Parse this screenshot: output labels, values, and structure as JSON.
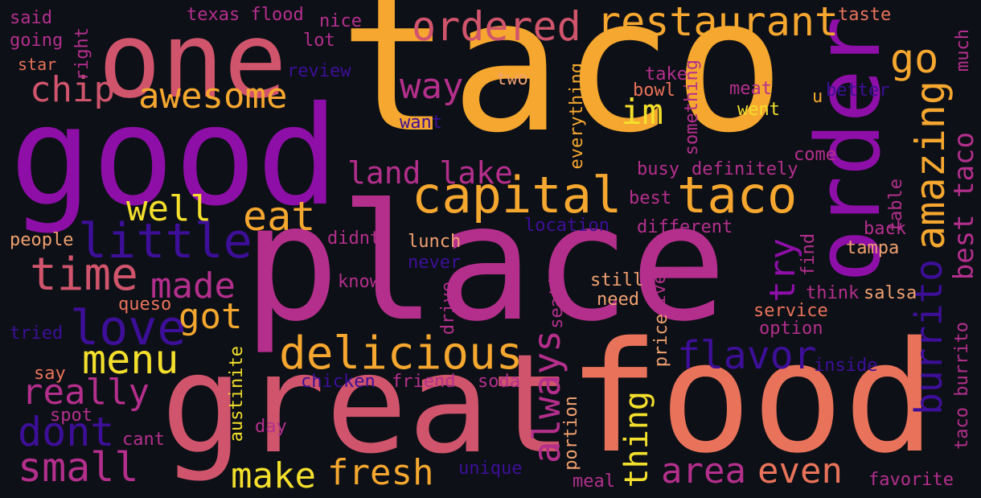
{
  "colors": {
    "background": "#0d1017",
    "purple": "#8e0fa8",
    "magenta": "#b42f8c",
    "pink": "#d0556c",
    "coral": "#e9735a",
    "orange": "#f5a72f",
    "yellow": "#f3df2c",
    "indigo": "#3d0f98",
    "peach": "#f0a070"
  },
  "words": {
    "taco": "taco",
    "place": "place",
    "good": "good",
    "great": "great",
    "food": "food",
    "one": "one",
    "order": "order",
    "capital": "capital",
    "taco2": "taco",
    "restaurant": "restaurant",
    "ordered": "ordered",
    "delicious": "delicious",
    "little": "little",
    "love": "love",
    "time": "time",
    "awesome": "awesome",
    "chip": "chip",
    "eat": "eat",
    "way": "way",
    "land_lake": "land lake",
    "well": "well",
    "menu": "menu",
    "got": "got",
    "made": "made",
    "really": "really",
    "dont": "dont",
    "small": "small",
    "make": "make",
    "fresh": "fresh",
    "always": "always",
    "area": "area",
    "even": "even",
    "thing": "thing",
    "flavor": "flavor",
    "try": "try",
    "im": "im",
    "amazing": "amazing",
    "go": "go",
    "burrito": "burrito",
    "best_taco": "best taco",
    "said": "said",
    "going": "going",
    "star": "star",
    "right": "right",
    "texas_flood": "texas flood",
    "nice": "nice",
    "lot": "lot",
    "review": "review",
    "two": "two",
    "want": "want",
    "everything": "everything",
    "take": "take",
    "bowl": "bowl",
    "something": "something",
    "meat": "meat",
    "went": "went",
    "u": "u",
    "better": "better",
    "taste": "taste",
    "much": "much",
    "come": "come",
    "busy": "busy",
    "definitely": "definitely",
    "best": "best",
    "table": "table",
    "location": "location",
    "different": "different",
    "back": "back",
    "people": "people",
    "didnt": "didnt",
    "lunch": "lunch",
    "never": "never",
    "know": "know",
    "tampa": "tampa",
    "find": "find",
    "still": "still",
    "need": "need",
    "ive": "ive",
    "seating": "seating",
    "drive": "drive",
    "queso": "queso",
    "think": "think",
    "salsa": "salsa",
    "service": "service",
    "option": "option",
    "tried": "tried",
    "price": "price",
    "inside": "inside",
    "austinite": "austinite",
    "chicken": "chicken",
    "friend": "friend",
    "soda": "soda",
    "say": "say",
    "spot": "spot",
    "cant": "cant",
    "day": "day",
    "portion": "portion",
    "unique": "unique",
    "meal": "meal",
    "taco_burrito": "taco burrito",
    "favorite": "favorite"
  }
}
